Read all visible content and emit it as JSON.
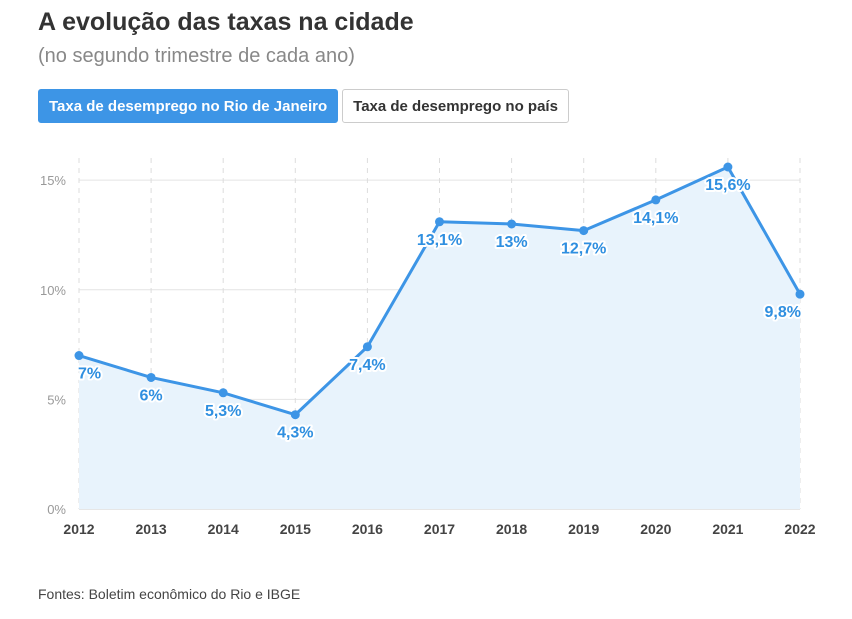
{
  "header": {
    "title": "A evolução das taxas na cidade",
    "subtitle": "(no segundo trimestre de cada ano)"
  },
  "tabs": [
    {
      "label": "Taxa de desemprego no Rio de Janeiro",
      "active": true
    },
    {
      "label": "Taxa de desemprego no país",
      "active": false
    }
  ],
  "footer": {
    "source": "Fontes: Boletim econômico do Rio e IBGE"
  },
  "colors": {
    "accent": "#3d95e6",
    "area": "#e8f3fc",
    "line": "#3d95e6"
  },
  "chart_data": {
    "type": "area",
    "x": [
      "2012",
      "2013",
      "2014",
      "2015",
      "2016",
      "2017",
      "2018",
      "2019",
      "2020",
      "2021",
      "2022"
    ],
    "series": [
      {
        "values": [
          7,
          6,
          5.3,
          4.3,
          7.4,
          13.1,
          13,
          12.7,
          14.1,
          15.6,
          9.8
        ],
        "labels": [
          "7%",
          "6%",
          "5,3%",
          "4,3%",
          "7,4%",
          "13,1%",
          "13%",
          "12,7%",
          "14,1%",
          "15,6%",
          "9,8%"
        ]
      }
    ],
    "yticks": [
      0,
      5,
      10,
      15
    ],
    "ytick_labels": [
      "0%",
      "5%",
      "10%",
      "15%"
    ],
    "ylim": [
      0,
      15.6
    ],
    "grid": true
  }
}
